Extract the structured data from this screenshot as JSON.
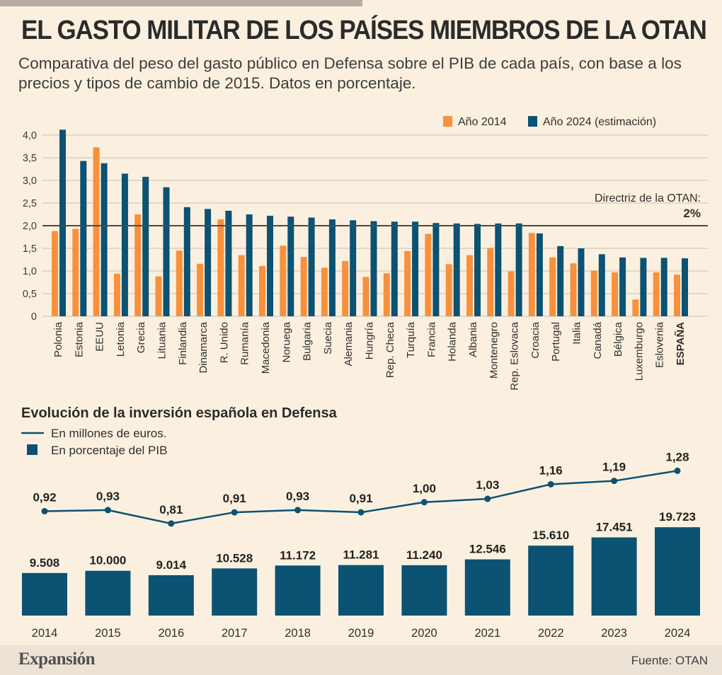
{
  "title": "EL GASTO MILITAR DE LOS PAÍSES MIEMBROS DE LA OTAN",
  "subtitle": "Comparativa del peso del gasto público en Defensa sobre el PIB de cada país, con base a los precios y tipos de cambio de 2015. Datos en porcentaje.",
  "colors": {
    "orange": "#f7913d",
    "blue": "#0b5273",
    "background": "#fbf0df",
    "gridline": "#c9c1b5"
  },
  "chart_data": [
    {
      "type": "bar",
      "categories": [
        "Polonia",
        "Estonia",
        "EEUU",
        "Letonia",
        "Grecia",
        "Lituania",
        "Finlandia",
        "Dinamarca",
        "R. Unido",
        "Rumanía",
        "Macedonia",
        "Noruega",
        "Bulgaria",
        "Suecia",
        "Alemania",
        "Hungría",
        "Rep. Checa",
        "Turquía",
        "Francia",
        "Holanda",
        "Albania",
        "Montenegro",
        "Rep. Eslovaca",
        "Croacia",
        "Portugal",
        "Italia",
        "Canadá",
        "Bélgica",
        "Luxemburgo",
        "Eslovenia",
        "ESPAÑA"
      ],
      "highlight_category": "ESPAÑA",
      "series": [
        {
          "name": "Año 2014",
          "color": "#f7913d",
          "values": [
            1.88,
            1.93,
            3.73,
            0.94,
            2.25,
            0.88,
            1.45,
            1.16,
            2.14,
            1.35,
            1.11,
            1.56,
            1.31,
            1.07,
            1.22,
            0.87,
            0.95,
            1.44,
            1.82,
            1.15,
            1.35,
            1.51,
            0.99,
            1.84,
            1.3,
            1.17,
            1.01,
            0.97,
            0.37,
            0.97,
            0.92
          ]
        },
        {
          "name": "Año 2024 (estimación)",
          "color": "#0b5273",
          "values": [
            4.12,
            3.43,
            3.38,
            3.15,
            3.08,
            2.85,
            2.41,
            2.37,
            2.33,
            2.25,
            2.22,
            2.2,
            2.18,
            2.14,
            2.12,
            2.1,
            2.09,
            2.09,
            2.06,
            2.05,
            2.04,
            2.05,
            2.05,
            1.83,
            1.55,
            1.5,
            1.37,
            1.3,
            1.29,
            1.29,
            1.28
          ]
        }
      ],
      "yticks": [
        "0",
        "0,5",
        "1,0",
        "1,5",
        "2,0",
        "2,5",
        "3,0",
        "3,5",
        "4,0"
      ],
      "ylim": [
        0,
        4.2
      ],
      "grid": true,
      "legend_position": "top-right",
      "reference_line": {
        "value": 2.0,
        "label": "Directriz de la OTAN:",
        "value_label": "2%"
      }
    },
    {
      "type": "bar+line",
      "title": "Evolución de la inversión española en Defensa",
      "categories": [
        "2014",
        "2015",
        "2016",
        "2017",
        "2018",
        "2019",
        "2020",
        "2021",
        "2022",
        "2023",
        "2024"
      ],
      "legend": [
        "En  millones de euros.",
        "En porcentaje del PIB"
      ],
      "bars": {
        "values": [
          9508,
          10000,
          9014,
          10528,
          11172,
          11281,
          11240,
          12546,
          15610,
          17451,
          19723
        ],
        "labels": [
          "9.508",
          "10.000",
          "9.014",
          "10.528",
          "11.172",
          "11.281",
          "11.240",
          "12.546",
          "15.610",
          "17.451",
          "19.723"
        ],
        "color": "#0b5273"
      },
      "line": {
        "values": [
          0.92,
          0.93,
          0.81,
          0.91,
          0.93,
          0.91,
          1.0,
          1.03,
          1.16,
          1.19,
          1.28
        ],
        "labels": [
          "0,92",
          "0,93",
          "0,81",
          "0,91",
          "0,93",
          "0,91",
          "1,00",
          "1,03",
          "1,16",
          "1,19",
          "1,28"
        ],
        "color": "#0b5273"
      }
    }
  ],
  "footer": {
    "brand": "Expansión",
    "source": "Fuente: OTAN"
  }
}
